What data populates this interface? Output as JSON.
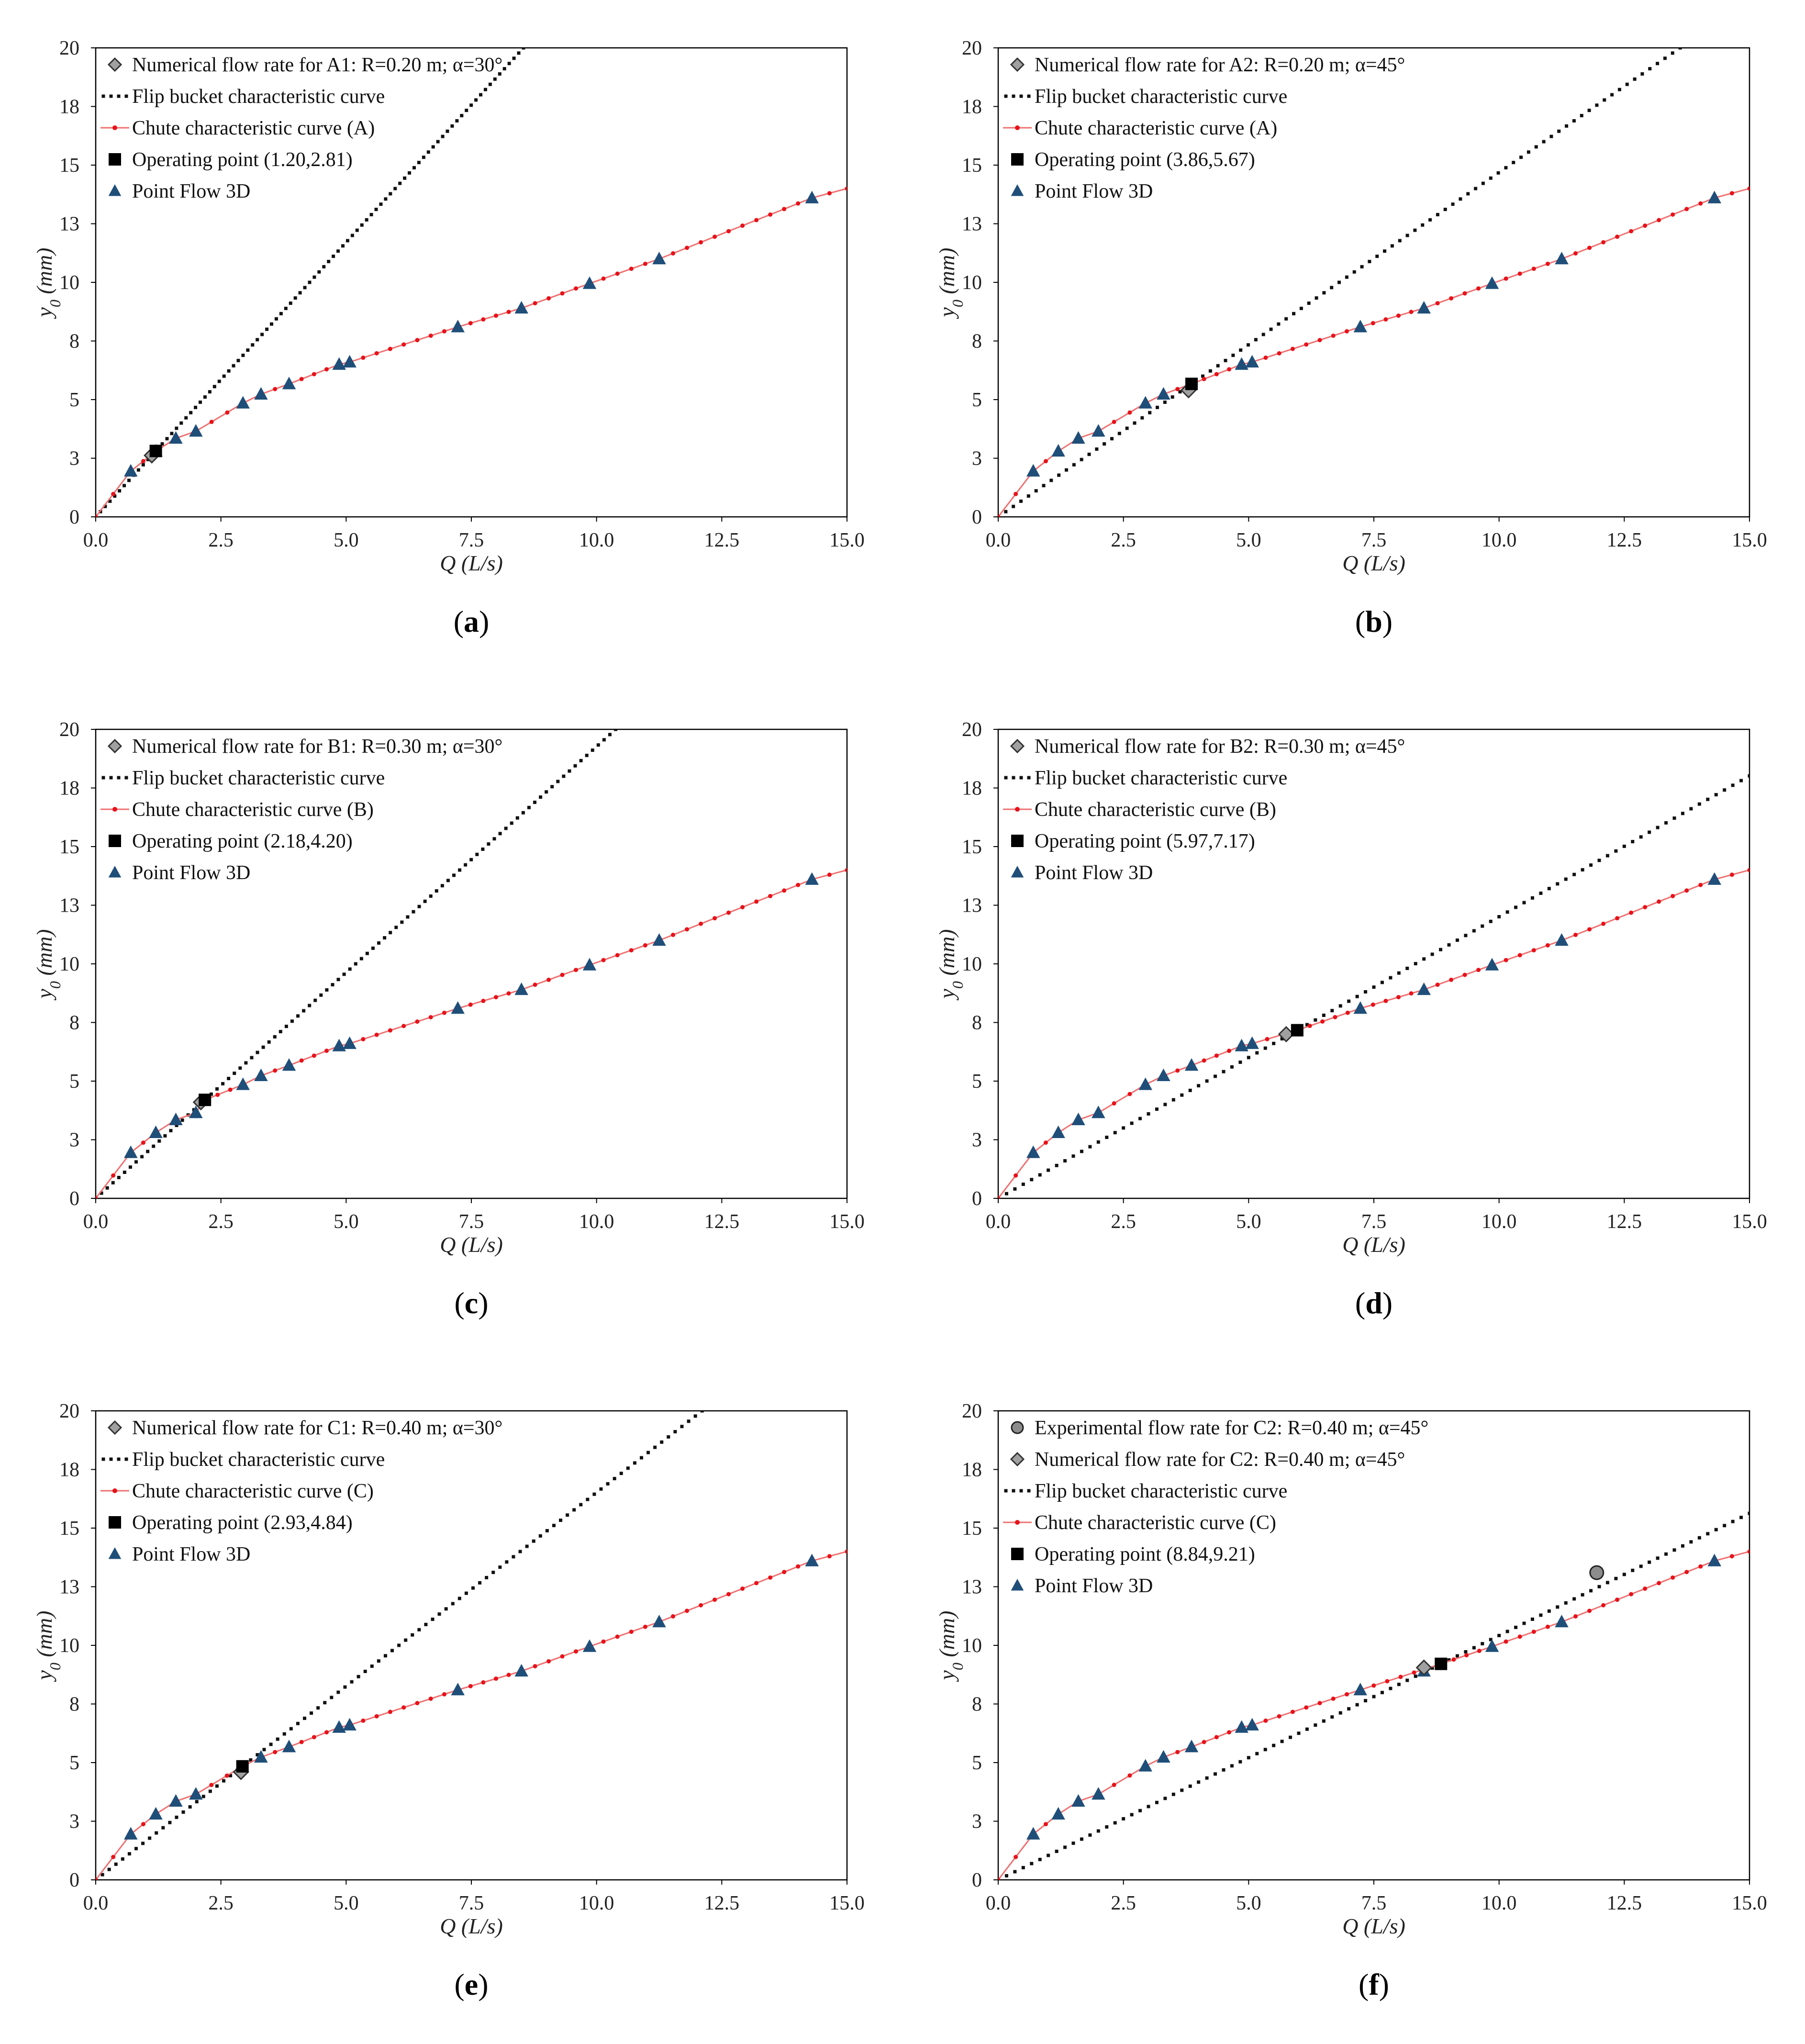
{
  "colors": {
    "flip": "#111111",
    "chute": "#e8121a",
    "chute_line": "#f07070",
    "operating": "#000000",
    "flow3d": "#1f4e79",
    "diamond": "#a0a0a0",
    "experimental": "#8c8c8c",
    "axis": "#000000"
  },
  "chart_data": [
    {
      "panel": "a",
      "type": "line",
      "caption_letter": "a",
      "xlabel": "Q (L/s)",
      "ylabel_main": "y",
      "ylabel_sub": "0",
      "ylabel_unit": " (mm)",
      "xlim": [
        0,
        15
      ],
      "ylim": [
        0,
        20
      ],
      "x_ticks": [
        "0.0",
        "2.5",
        "5.0",
        "7.5",
        "10.0",
        "12.5",
        "15.0"
      ],
      "y_ticks": [
        "0",
        "3",
        "5",
        "8",
        "10",
        "13",
        "15",
        "18",
        "20"
      ],
      "legend": [
        {
          "key": "diamond",
          "label": "Numerical flow rate for A1: R=0.20 m; α=30°"
        },
        {
          "key": "flip",
          "label": "Flip bucket characteristic curve"
        },
        {
          "key": "chute",
          "label": "Chute characteristic curve (A)"
        },
        {
          "key": "operating",
          "label": "Operating point (1.20,2.81)"
        },
        {
          "key": "flow3d",
          "label": "Point Flow 3D"
        }
      ],
      "flip_slope": 2.3417,
      "chute_curve": {
        "x": [
          0,
          0.7,
          1.2,
          1.6,
          2.0,
          2.94,
          3.3,
          3.86,
          4.86,
          5.07,
          7.23,
          8.5,
          9.86,
          11.25,
          14.3,
          15.0
        ],
        "y": [
          0,
          1.95,
          2.8,
          3.35,
          3.65,
          4.85,
          5.23,
          5.67,
          6.5,
          6.6,
          8.1,
          8.9,
          9.95,
          11.0,
          13.6,
          14.0
        ]
      },
      "flow3d": {
        "x": [
          0.7,
          1.2,
          1.6,
          2.0,
          2.94,
          3.3,
          3.86,
          4.86,
          5.07,
          7.23,
          8.5,
          9.86,
          11.25,
          14.3
        ],
        "y": [
          1.95,
          2.8,
          3.35,
          3.65,
          4.85,
          5.23,
          5.67,
          6.5,
          6.6,
          8.1,
          8.9,
          9.95,
          11.0,
          13.6
        ]
      },
      "numerical": {
        "x": 1.12,
        "y": 2.62
      },
      "operating": {
        "x": 1.2,
        "y": 2.81
      }
    },
    {
      "panel": "b",
      "type": "line",
      "caption_letter": "b",
      "xlabel": "Q (L/s)",
      "ylabel_main": "y",
      "ylabel_sub": "0",
      "ylabel_unit": " (mm)",
      "xlim": [
        0,
        15
      ],
      "ylim": [
        0,
        20
      ],
      "x_ticks": [
        "0.0",
        "2.5",
        "5.0",
        "7.5",
        "10.0",
        "12.5",
        "15.0"
      ],
      "y_ticks": [
        "0",
        "3",
        "5",
        "8",
        "10",
        "13",
        "15",
        "18",
        "20"
      ],
      "legend": [
        {
          "key": "diamond",
          "label": "Numerical flow rate for A2: R=0.20 m; α=45°"
        },
        {
          "key": "flip",
          "label": "Flip bucket characteristic curve"
        },
        {
          "key": "chute",
          "label": "Chute characteristic curve (A)"
        },
        {
          "key": "operating",
          "label": "Operating point (3.86,5.67)"
        },
        {
          "key": "flow3d",
          "label": "Point Flow 3D"
        }
      ],
      "flip_slope": 1.4689,
      "chute_curve": {
        "x": [
          0,
          0.7,
          1.2,
          1.6,
          2.0,
          2.94,
          3.3,
          3.86,
          4.86,
          5.07,
          7.23,
          8.5,
          9.86,
          11.25,
          14.3,
          15.0
        ],
        "y": [
          0,
          1.95,
          2.8,
          3.35,
          3.65,
          4.85,
          5.23,
          5.67,
          6.5,
          6.6,
          8.1,
          8.9,
          9.95,
          11.0,
          13.6,
          14.0
        ]
      },
      "flow3d": {
        "x": [
          0.7,
          1.2,
          1.6,
          2.0,
          2.94,
          3.3,
          4.86,
          5.07,
          7.23,
          8.5,
          9.86,
          11.25,
          14.3
        ],
        "y": [
          1.95,
          2.8,
          3.35,
          3.65,
          4.85,
          5.23,
          6.5,
          6.6,
          8.1,
          8.9,
          9.95,
          11.0,
          13.6
        ]
      },
      "numerical": {
        "x": 3.8,
        "y": 5.4
      },
      "operating": {
        "x": 3.86,
        "y": 5.67
      }
    },
    {
      "panel": "c",
      "type": "line",
      "caption_letter": "c",
      "xlabel": "Q (L/s)",
      "ylabel_main": "y",
      "ylabel_sub": "0",
      "ylabel_unit": " (mm)",
      "xlim": [
        0,
        15
      ],
      "ylim": [
        0,
        20
      ],
      "x_ticks": [
        "0.0",
        "2.5",
        "5.0",
        "7.5",
        "10.0",
        "12.5",
        "15.0"
      ],
      "y_ticks": [
        "0",
        "3",
        "5",
        "8",
        "10",
        "13",
        "15",
        "18",
        "20"
      ],
      "legend": [
        {
          "key": "diamond",
          "label": "Numerical flow rate for B1: R=0.30 m; α=30°"
        },
        {
          "key": "flip",
          "label": "Flip bucket characteristic curve"
        },
        {
          "key": "chute",
          "label": "Chute characteristic curve (B)"
        },
        {
          "key": "operating",
          "label": "Operating point (2.18,4.20)"
        },
        {
          "key": "flow3d",
          "label": "Point Flow 3D"
        }
      ],
      "flip_slope": 1.9266,
      "chute_curve": {
        "x": [
          0,
          0.7,
          1.2,
          1.6,
          2.0,
          2.18,
          2.94,
          3.3,
          3.86,
          4.86,
          5.07,
          7.23,
          8.5,
          9.86,
          11.25,
          14.3,
          15.0
        ],
        "y": [
          0,
          1.95,
          2.8,
          3.35,
          3.65,
          4.2,
          4.85,
          5.23,
          5.67,
          6.5,
          6.6,
          8.1,
          8.9,
          9.95,
          11.0,
          13.6,
          14.0
        ]
      },
      "flow3d": {
        "x": [
          0.7,
          1.2,
          1.6,
          2.0,
          2.94,
          3.3,
          3.86,
          4.86,
          5.07,
          7.23,
          8.5,
          9.86,
          11.25,
          14.3
        ],
        "y": [
          1.95,
          2.8,
          3.35,
          3.65,
          4.85,
          5.23,
          5.67,
          6.5,
          6.6,
          8.1,
          8.9,
          9.95,
          11.0,
          13.6
        ]
      },
      "numerical": {
        "x": 2.1,
        "y": 4.1
      },
      "operating": {
        "x": 2.18,
        "y": 4.2
      }
    },
    {
      "panel": "d",
      "type": "line",
      "caption_letter": "d",
      "xlabel": "Q (L/s)",
      "ylabel_main": "y",
      "ylabel_sub": "0",
      "ylabel_unit": " (mm)",
      "xlim": [
        0,
        15
      ],
      "ylim": [
        0,
        20
      ],
      "x_ticks": [
        "0.0",
        "2.5",
        "5.0",
        "7.5",
        "10.0",
        "12.5",
        "15.0"
      ],
      "y_ticks": [
        "0",
        "3",
        "5",
        "8",
        "10",
        "13",
        "15",
        "18",
        "20"
      ],
      "legend": [
        {
          "key": "diamond",
          "label": "Numerical flow rate for B2: R=0.30 m; α=45°"
        },
        {
          "key": "flip",
          "label": "Flip bucket characteristic curve"
        },
        {
          "key": "chute",
          "label": "Chute characteristic curve (B)"
        },
        {
          "key": "operating",
          "label": "Operating point (5.97,7.17)"
        },
        {
          "key": "flow3d",
          "label": "Point Flow 3D"
        }
      ],
      "flip_slope": 1.201,
      "chute_curve": {
        "x": [
          0,
          0.7,
          1.2,
          1.6,
          2.0,
          2.94,
          3.3,
          3.86,
          4.86,
          5.07,
          5.97,
          7.23,
          8.5,
          9.86,
          11.25,
          14.3,
          15.0
        ],
        "y": [
          0,
          1.95,
          2.8,
          3.35,
          3.65,
          4.85,
          5.23,
          5.67,
          6.5,
          6.6,
          7.17,
          8.1,
          8.9,
          9.95,
          11.0,
          13.6,
          14.0
        ]
      },
      "flow3d": {
        "x": [
          0.7,
          1.2,
          1.6,
          2.0,
          2.94,
          3.3,
          3.86,
          4.86,
          5.07,
          7.23,
          8.5,
          9.86,
          11.25,
          14.3
        ],
        "y": [
          1.95,
          2.8,
          3.35,
          3.65,
          4.85,
          5.23,
          5.67,
          6.5,
          6.6,
          8.1,
          8.9,
          9.95,
          11.0,
          13.6
        ]
      },
      "numerical": {
        "x": 5.75,
        "y": 7.0
      },
      "operating": {
        "x": 5.97,
        "y": 7.17
      }
    },
    {
      "panel": "e",
      "type": "line",
      "caption_letter": "e",
      "xlabel": "Q (L/s)",
      "ylabel_main": "y",
      "ylabel_sub": "0",
      "ylabel_unit": " (mm)",
      "xlim": [
        0,
        15
      ],
      "ylim": [
        0,
        20
      ],
      "x_ticks": [
        "0.0",
        "2.5",
        "5.0",
        "7.5",
        "10.0",
        "12.5",
        "15.0"
      ],
      "y_ticks": [
        "0",
        "3",
        "5",
        "8",
        "10",
        "13",
        "15",
        "18",
        "20"
      ],
      "legend": [
        {
          "key": "diamond",
          "label": "Numerical flow rate for C1: R=0.40 m; α=30°"
        },
        {
          "key": "flip",
          "label": "Flip bucket characteristic curve"
        },
        {
          "key": "chute",
          "label": "Chute characteristic curve (C)"
        },
        {
          "key": "operating",
          "label": "Operating point (2.93,4.84)"
        },
        {
          "key": "flow3d",
          "label": "Point Flow 3D"
        }
      ],
      "flip_slope": 1.6519,
      "chute_curve": {
        "x": [
          0,
          0.7,
          1.2,
          1.6,
          2.0,
          2.93,
          3.3,
          3.86,
          4.86,
          5.07,
          7.23,
          8.5,
          9.86,
          11.25,
          14.3,
          15.0
        ],
        "y": [
          0,
          1.95,
          2.8,
          3.35,
          3.65,
          4.84,
          5.23,
          5.67,
          6.5,
          6.6,
          8.1,
          8.9,
          9.95,
          11.0,
          13.6,
          14.0
        ]
      },
      "flow3d": {
        "x": [
          0.7,
          1.2,
          1.6,
          2.0,
          3.3,
          3.86,
          4.86,
          5.07,
          7.23,
          8.5,
          9.86,
          11.25,
          14.3
        ],
        "y": [
          1.95,
          2.8,
          3.35,
          3.65,
          5.23,
          5.67,
          6.5,
          6.6,
          8.1,
          8.9,
          9.95,
          11.0,
          13.6
        ]
      },
      "numerical": {
        "x": 2.9,
        "y": 4.6
      },
      "operating": {
        "x": 2.93,
        "y": 4.84
      }
    },
    {
      "panel": "f",
      "type": "line",
      "caption_letter": "f",
      "xlabel": "Q (L/s)",
      "ylabel_main": "y",
      "ylabel_sub": "0",
      "ylabel_unit": " (mm)",
      "xlim": [
        0,
        15
      ],
      "ylim": [
        0,
        20
      ],
      "x_ticks": [
        "0.0",
        "2.5",
        "5.0",
        "7.5",
        "10.0",
        "12.5",
        "15.0"
      ],
      "y_ticks": [
        "0",
        "3",
        "5",
        "8",
        "10",
        "13",
        "15",
        "18",
        "20"
      ],
      "legend": [
        {
          "key": "experimental",
          "label": "Experimental flow rate for C2: R=0.40 m; α=45°"
        },
        {
          "key": "diamond",
          "label": "Numerical flow rate for C2: R=0.40 m; α=45°"
        },
        {
          "key": "flip",
          "label": "Flip bucket characteristic curve"
        },
        {
          "key": "chute",
          "label": "Chute characteristic curve (C)"
        },
        {
          "key": "operating",
          "label": "Operating point (8.84,9.21)"
        },
        {
          "key": "flow3d",
          "label": "Point Flow 3D"
        }
      ],
      "flip_slope": 1.0419,
      "chute_curve": {
        "x": [
          0,
          0.7,
          1.2,
          1.6,
          2.0,
          2.94,
          3.3,
          3.86,
          4.86,
          5.07,
          7.23,
          8.84,
          9.86,
          11.25,
          14.3,
          15.0
        ],
        "y": [
          0,
          1.95,
          2.8,
          3.35,
          3.65,
          4.85,
          5.23,
          5.67,
          6.5,
          6.6,
          8.1,
          9.21,
          9.95,
          11.0,
          13.6,
          14.0
        ]
      },
      "flow3d": {
        "x": [
          0.7,
          1.2,
          1.6,
          2.0,
          2.94,
          3.3,
          3.86,
          4.86,
          5.07,
          7.23,
          8.5,
          9.86,
          11.25,
          14.3
        ],
        "y": [
          1.95,
          2.8,
          3.35,
          3.65,
          4.85,
          5.23,
          5.67,
          6.5,
          6.6,
          8.1,
          8.9,
          9.95,
          11.0,
          13.6
        ]
      },
      "numerical": {
        "x": 8.5,
        "y": 9.05
      },
      "operating": {
        "x": 8.84,
        "y": 9.21
      },
      "experimental": {
        "x": 11.95,
        "y": 13.1
      }
    }
  ]
}
